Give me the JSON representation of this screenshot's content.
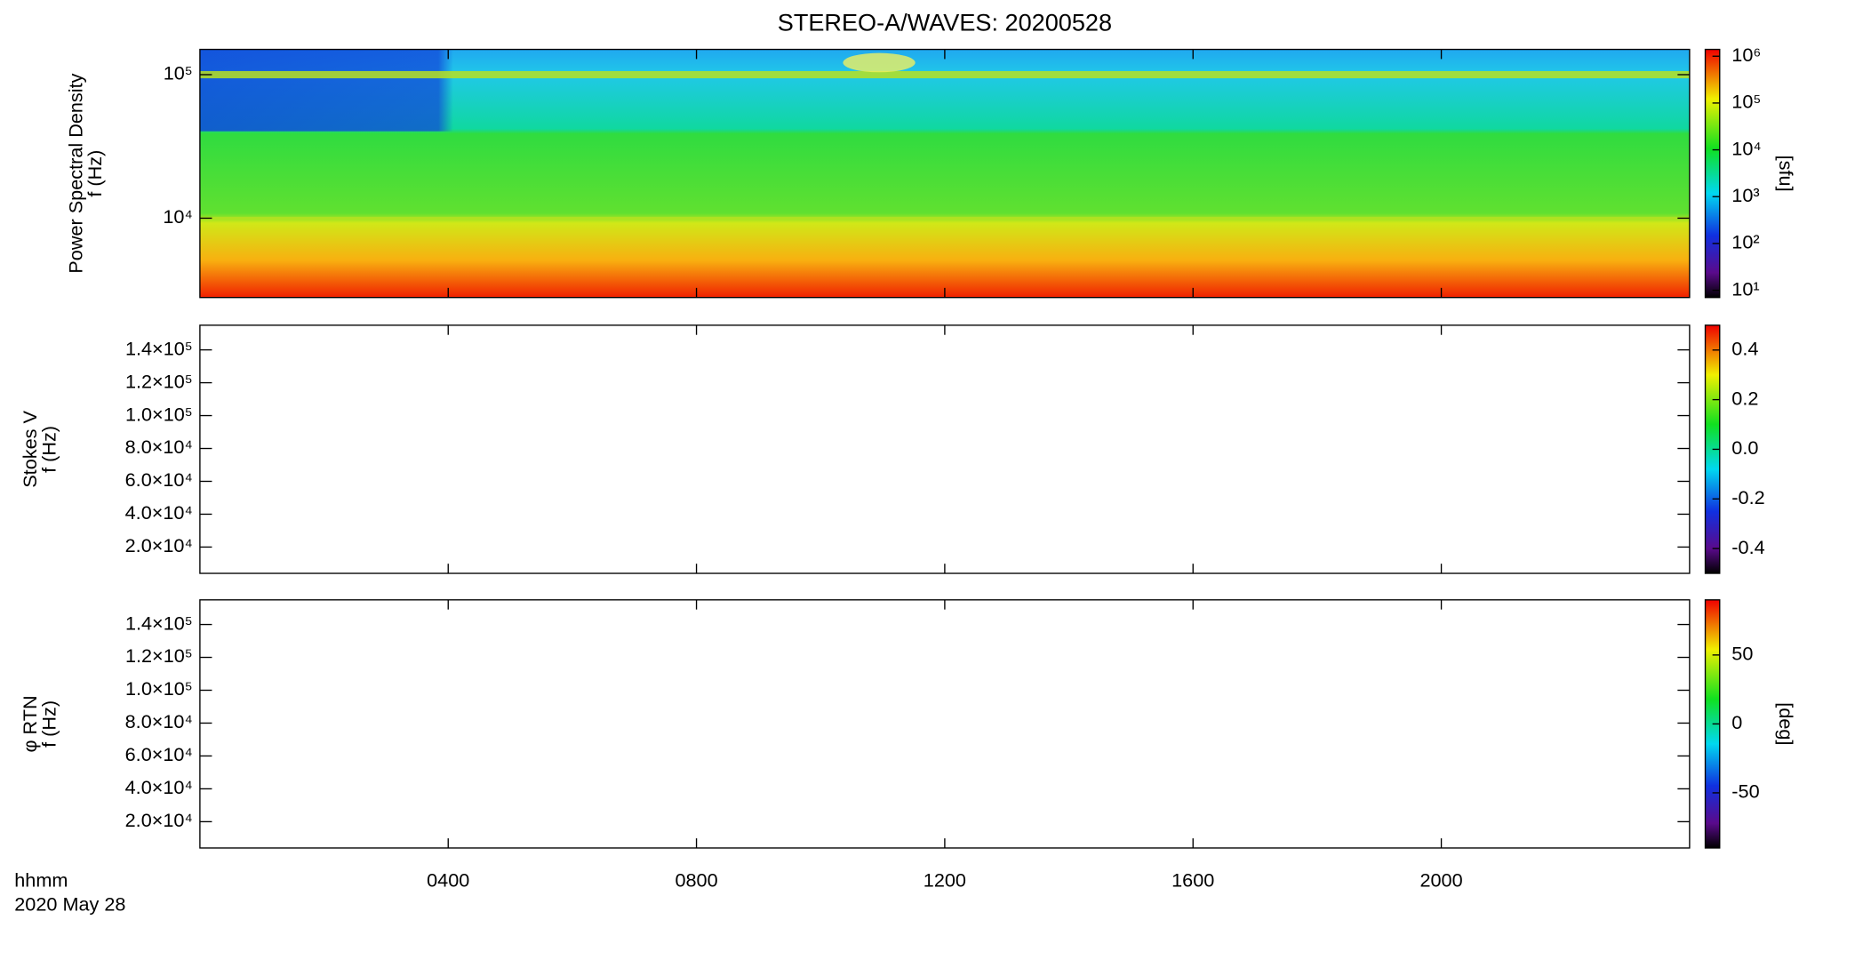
{
  "chart_data": [
    {
      "type": "spectrogram",
      "title": "STEREO-A/WAVES: 20200528",
      "ylabel": [
        "Power Spectral Density",
        "f (Hz)"
      ],
      "yscale": "log",
      "xlim": [
        0,
        24
      ],
      "xticks": [
        {
          "value": 4,
          "label": "0400"
        },
        {
          "value": 8,
          "label": "0800"
        },
        {
          "value": 12,
          "label": "1200"
        },
        {
          "value": 16,
          "label": "1600"
        },
        {
          "value": 20,
          "label": "2000"
        }
      ],
      "ylim": [
        2800,
        150000
      ],
      "yticks": [
        {
          "value": 10000,
          "label": "10⁴"
        },
        {
          "value": 100000,
          "label": "10⁵"
        }
      ],
      "colorbar": {
        "label": "[sfu]",
        "scale": "log",
        "lim": [
          7,
          1400000
        ],
        "ticks": [
          {
            "value": 10,
            "label": "10¹"
          },
          {
            "value": 100,
            "label": "10²"
          },
          {
            "value": 1000,
            "label": "10³"
          },
          {
            "value": 10000,
            "label": "10⁴"
          },
          {
            "value": 100000,
            "label": "10⁵"
          },
          {
            "value": 1000000,
            "label": "10⁶"
          }
        ]
      }
    },
    {
      "type": "spectrogram",
      "ylabel": [
        "Stokes V",
        "f (Hz)"
      ],
      "yscale": "linear",
      "xlim": [
        0,
        24
      ],
      "xticks": [
        {
          "value": 4,
          "label": "0400"
        },
        {
          "value": 8,
          "label": "0800"
        },
        {
          "value": 12,
          "label": "1200"
        },
        {
          "value": 16,
          "label": "1600"
        },
        {
          "value": 20,
          "label": "2000"
        }
      ],
      "ylim": [
        4000,
        155000
      ],
      "yticks": [
        {
          "value": 20000,
          "label": "2.0×10⁴"
        },
        {
          "value": 40000,
          "label": "4.0×10⁴"
        },
        {
          "value": 60000,
          "label": "6.0×10⁴"
        },
        {
          "value": 80000,
          "label": "8.0×10⁴"
        },
        {
          "value": 100000,
          "label": "1.0×10⁵"
        },
        {
          "value": 120000,
          "label": "1.2×10⁵"
        },
        {
          "value": 140000,
          "label": "1.4×10⁵"
        }
      ],
      "colorbar": {
        "scale": "linear",
        "lim": [
          -0.5,
          0.5
        ],
        "ticks": [
          -0.4,
          -0.2,
          {
            "value": 0,
            "label": "0.0"
          },
          0.2,
          0.4
        ]
      }
    },
    {
      "type": "spectrogram",
      "ylabel": [
        "φ RTN",
        "f (Hz)"
      ],
      "yscale": "linear",
      "xlim": [
        0,
        24
      ],
      "xticks": [
        {
          "value": 4,
          "label": "0400"
        },
        {
          "value": 8,
          "label": "0800"
        },
        {
          "value": 12,
          "label": "1200"
        },
        {
          "value": 16,
          "label": "1600"
        },
        {
          "value": 20,
          "label": "2000"
        }
      ],
      "ylim": [
        4000,
        155000
      ],
      "yticks": [
        {
          "value": 20000,
          "label": "2.0×10⁴"
        },
        {
          "value": 40000,
          "label": "4.0×10⁴"
        },
        {
          "value": 60000,
          "label": "6.0×10⁴"
        },
        {
          "value": 80000,
          "label": "8.0×10⁴"
        },
        {
          "value": 100000,
          "label": "1.0×10⁵"
        },
        {
          "value": 120000,
          "label": "1.2×10⁵"
        },
        {
          "value": 140000,
          "label": "1.4×10⁵"
        }
      ],
      "colorbar": {
        "label": "[deg]",
        "scale": "linear",
        "lim": [
          -90,
          90
        ],
        "ticks": [
          -50,
          0,
          50
        ]
      },
      "xlabel": [
        "hhmm",
        "2020 May 28"
      ]
    }
  ]
}
